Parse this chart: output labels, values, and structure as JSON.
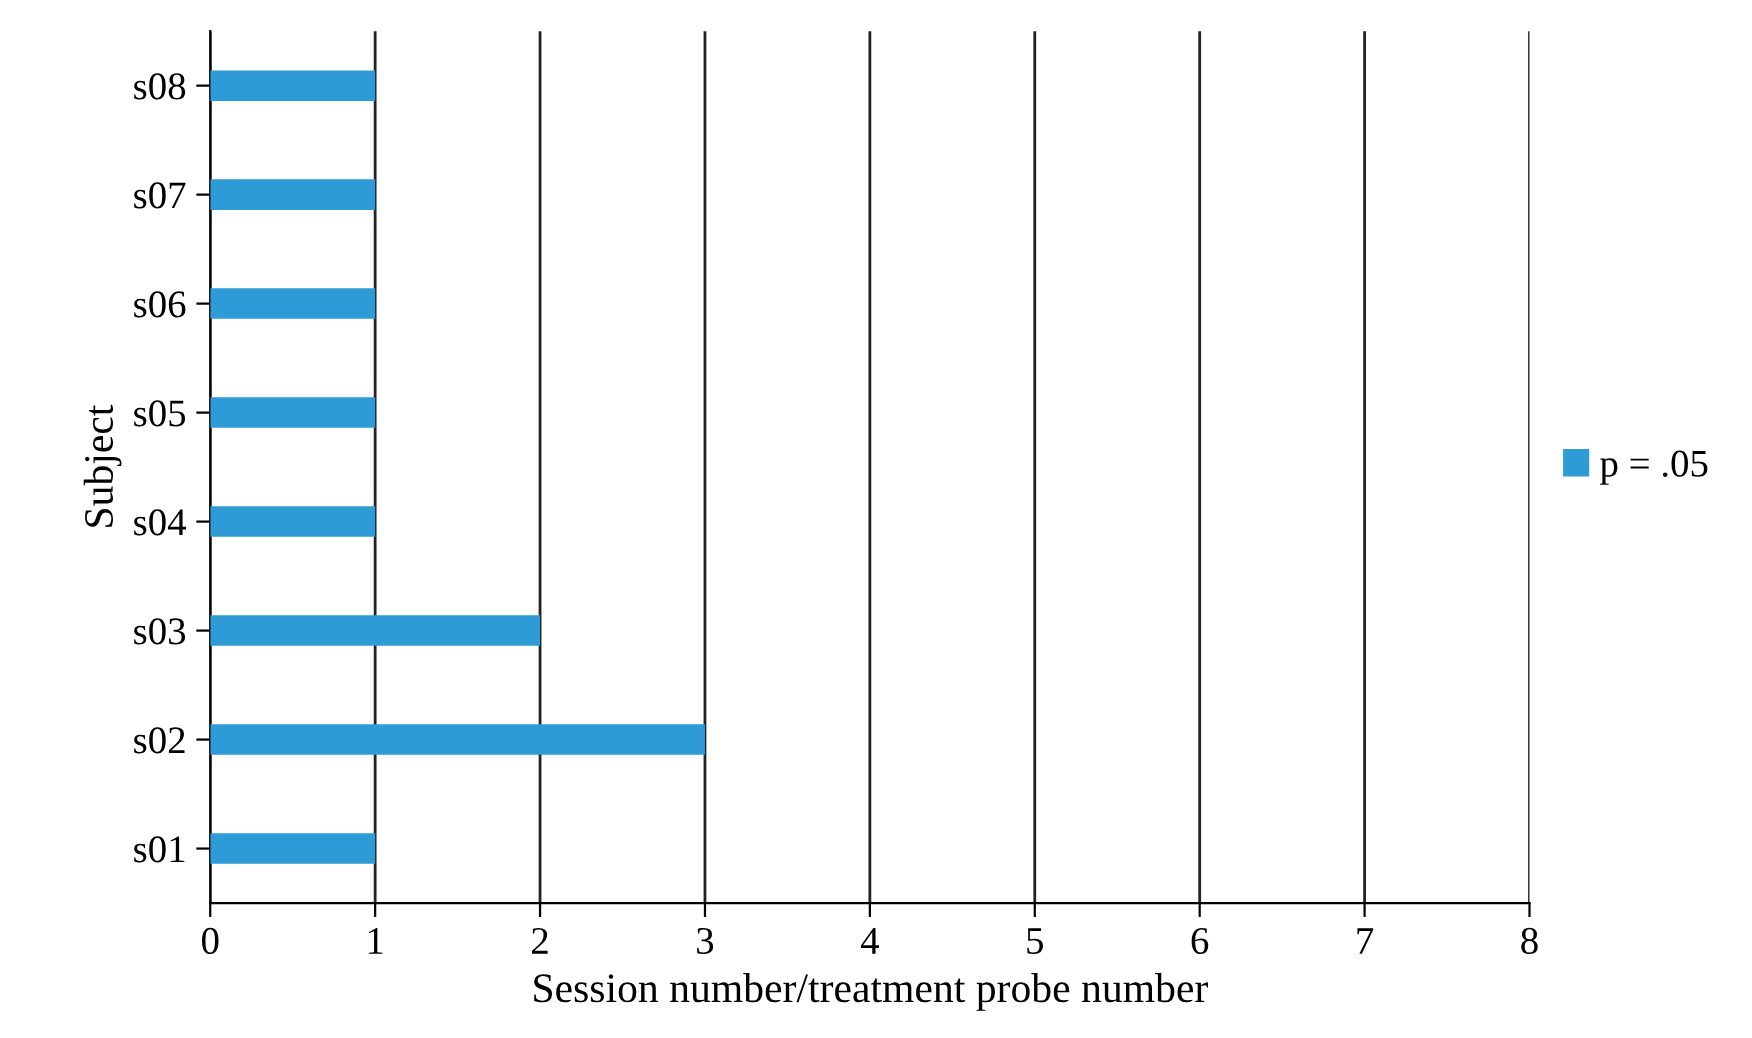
{
  "chart_data": {
    "type": "bar",
    "orientation": "horizontal",
    "categories": [
      "s08",
      "s07",
      "s06",
      "s05",
      "s04",
      "s03",
      "s02",
      "s01"
    ],
    "series": [
      {
        "name": "p = .05",
        "color": "#2e9bd6",
        "values": [
          1,
          1,
          1,
          1,
          1,
          2,
          3,
          1
        ]
      }
    ],
    "xlabel": "Session number/treatment probe number",
    "ylabel": "Subject",
    "xlim": [
      0,
      8
    ],
    "xticks": [
      0,
      1,
      2,
      3,
      4,
      5,
      6,
      7,
      8
    ],
    "grid": "x",
    "legend": "right"
  }
}
